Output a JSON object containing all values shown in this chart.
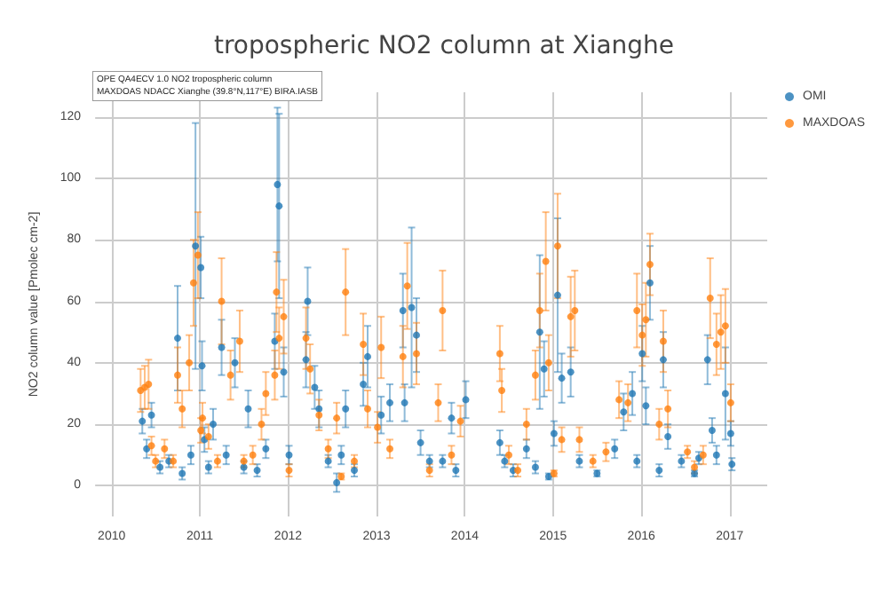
{
  "chart_data": {
    "type": "scatter",
    "title": "tropospheric NO2 column at Xianghe",
    "ylabel": "NO2 column value [Pmolec cm-2]",
    "annotations": [
      "OPE QA4ECV 1.0 NO2 tropospheric column\nMAXDOAS NDACC Xianghe (39.8°N,117°E) BIRA.IASB"
    ],
    "xlim": [
      "2009-10-25",
      "2017-06-05"
    ],
    "xticks": [
      "2010",
      "2011",
      "2012",
      "2013",
      "2014",
      "2015",
      "2016",
      "2017"
    ],
    "ylim": [
      -10,
      128
    ],
    "yticks": [
      0,
      20,
      40,
      60,
      80,
      100,
      120
    ],
    "grid": true,
    "legend": "top right",
    "marker": "circle",
    "series": [
      {
        "name": "OMI",
        "color": "#1f77b4",
        "x": [
          "2010-05-08",
          "2010-05-26",
          "2010-06-15",
          "2010-07-20",
          "2010-08-26",
          "2010-10-01",
          "2010-10-20",
          "2010-11-25",
          "2010-12-14",
          "2011-01-05",
          "2011-01-10",
          "2011-01-20",
          "2011-02-06",
          "2011-02-25",
          "2011-04-01",
          "2011-04-20",
          "2011-05-26",
          "2011-07-02",
          "2011-07-20",
          "2011-08-26",
          "2011-10-01",
          "2011-11-07",
          "2011-11-18",
          "2011-11-25",
          "2011-12-14",
          "2012-01-05",
          "2012-03-15",
          "2012-03-22",
          "2012-04-20",
          "2012-05-08",
          "2012-06-15",
          "2012-07-20",
          "2012-08-08",
          "2012-08-26",
          "2012-10-01",
          "2012-11-07",
          "2012-11-25",
          "2013-01-20",
          "2013-02-25",
          "2013-04-20",
          "2013-04-27",
          "2013-05-26",
          "2013-06-15",
          "2013-07-02",
          "2013-08-08",
          "2013-10-01",
          "2013-11-07",
          "2013-11-25",
          "2014-01-05",
          "2014-05-26",
          "2014-06-15",
          "2014-07-20",
          "2014-09-13",
          "2014-10-20",
          "2014-11-07",
          "2014-11-25",
          "2014-12-14",
          "2015-01-05",
          "2015-01-20",
          "2015-02-06",
          "2015-03-15",
          "2015-04-20",
          "2015-07-02",
          "2015-09-13",
          "2015-10-20",
          "2015-11-25",
          "2015-12-14",
          "2016-01-05",
          "2016-01-20",
          "2016-02-06",
          "2016-03-15",
          "2016-04-01",
          "2016-04-20",
          "2016-06-15",
          "2016-08-08",
          "2016-08-26",
          "2016-10-01",
          "2016-10-20",
          "2016-11-07",
          "2016-12-14",
          "2017-01-05",
          "2017-01-10"
        ],
        "values": [
          21,
          12,
          23,
          6,
          8,
          48,
          4,
          10,
          78,
          71,
          39,
          15,
          6,
          20,
          45,
          10,
          40,
          6,
          25,
          5,
          12,
          47,
          98,
          91,
          37,
          10,
          41,
          60,
          32,
          25,
          8,
          1,
          10,
          25,
          5,
          33,
          42,
          23,
          27,
          57,
          27,
          58,
          49,
          14,
          8,
          8,
          22,
          5,
          28,
          14,
          8,
          5,
          12,
          6,
          50,
          38,
          3,
          17,
          62,
          35,
          37,
          8,
          4,
          12,
          24,
          30,
          8,
          43,
          26,
          66,
          5,
          41,
          16,
          8,
          4,
          9,
          41,
          18,
          10,
          30,
          17,
          7
        ],
        "errors": [
          4,
          3,
          4,
          2,
          2,
          17,
          2,
          3,
          40,
          10,
          8,
          4,
          2,
          5,
          9,
          3,
          8,
          2,
          6,
          2,
          3,
          9,
          25,
          30,
          8,
          3,
          9,
          11,
          7,
          6,
          2,
          3,
          3,
          6,
          2,
          7,
          10,
          6,
          6,
          12,
          6,
          26,
          12,
          4,
          2,
          2,
          5,
          2,
          6,
          4,
          2,
          2,
          3,
          2,
          25,
          9,
          1,
          4,
          25,
          8,
          8,
          2,
          1,
          3,
          6,
          7,
          2,
          9,
          6,
          12,
          2,
          9,
          4,
          2,
          1,
          2,
          8,
          4,
          3,
          15,
          4,
          2
        ]
      },
      {
        "name": "MAXDOAS",
        "color": "#ff7f0e",
        "x": [
          "2010-05-01",
          "2010-05-18",
          "2010-06-03",
          "2010-06-15",
          "2010-07-02",
          "2010-08-08",
          "2010-09-13",
          "2010-10-01",
          "2010-10-20",
          "2010-11-18",
          "2010-12-06",
          "2010-12-24",
          "2011-01-05",
          "2011-01-12",
          "2011-02-06",
          "2011-03-15",
          "2011-04-01",
          "2011-05-08",
          "2011-06-15",
          "2011-07-02",
          "2011-08-08",
          "2011-09-13",
          "2011-10-01",
          "2011-11-07",
          "2011-11-14",
          "2011-11-25",
          "2011-12-14",
          "2012-01-05",
          "2012-03-15",
          "2012-04-01",
          "2012-05-08",
          "2012-06-15",
          "2012-07-20",
          "2012-08-08",
          "2012-08-26",
          "2012-10-01",
          "2012-11-07",
          "2012-11-25",
          "2013-01-05",
          "2013-01-20",
          "2013-02-25",
          "2013-04-20",
          "2013-05-08",
          "2013-06-15",
          "2013-08-08",
          "2013-09-13",
          "2013-10-01",
          "2013-11-07",
          "2013-12-14",
          "2014-05-26",
          "2014-06-03",
          "2014-07-02",
          "2014-08-08",
          "2014-09-13",
          "2014-10-20",
          "2014-11-07",
          "2014-12-02",
          "2014-12-14",
          "2015-01-05",
          "2015-01-20",
          "2015-02-06",
          "2015-03-15",
          "2015-04-01",
          "2015-04-20",
          "2015-06-15",
          "2015-08-08",
          "2015-10-01",
          "2015-11-07",
          "2015-12-14",
          "2016-01-05",
          "2016-01-20",
          "2016-02-06",
          "2016-03-15",
          "2016-04-01",
          "2016-04-20",
          "2016-07-10",
          "2016-08-08",
          "2016-09-13",
          "2016-10-12",
          "2016-11-07",
          "2016-11-25",
          "2016-12-14",
          "2017-01-05"
        ],
        "values": [
          31,
          32,
          33,
          13,
          8,
          12,
          8,
          36,
          25,
          40,
          66,
          75,
          18,
          22,
          16,
          8,
          60,
          36,
          47,
          8,
          10,
          20,
          30,
          36,
          63,
          48,
          55,
          5,
          48,
          38,
          23,
          12,
          22,
          3,
          63,
          8,
          46,
          25,
          19,
          45,
          12,
          42,
          65,
          43,
          5,
          27,
          57,
          10,
          21,
          43,
          31,
          10,
          5,
          20,
          36,
          57,
          73,
          40,
          4,
          78,
          15,
          55,
          57,
          15,
          8,
          11,
          28,
          27,
          57,
          49,
          54,
          72,
          20,
          47,
          25,
          11,
          6,
          10,
          61,
          46,
          50,
          52,
          27
        ],
        "errors": [
          7,
          7,
          8,
          3,
          2,
          3,
          2,
          9,
          6,
          9,
          14,
          14,
          4,
          5,
          4,
          2,
          14,
          8,
          10,
          2,
          3,
          5,
          7,
          8,
          13,
          10,
          12,
          2,
          10,
          8,
          5,
          3,
          5,
          1,
          14,
          2,
          10,
          6,
          5,
          10,
          3,
          10,
          14,
          10,
          2,
          6,
          13,
          3,
          5,
          9,
          7,
          3,
          2,
          5,
          8,
          12,
          16,
          9,
          1,
          17,
          4,
          13,
          13,
          4,
          2,
          3,
          6,
          6,
          12,
          10,
          12,
          10,
          5,
          10,
          6,
          2,
          2,
          3,
          13,
          10,
          12,
          12,
          6
        ]
      }
    ]
  }
}
